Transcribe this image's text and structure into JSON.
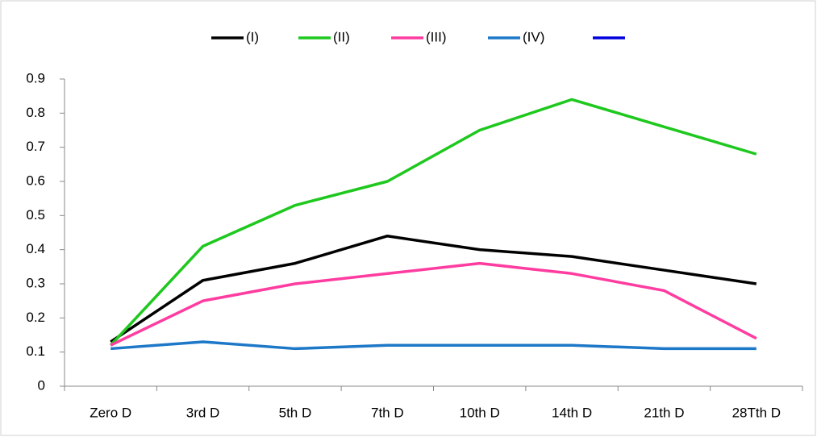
{
  "chart_data": {
    "type": "line",
    "categories": [
      "Zero D",
      "3rd D",
      "5th D",
      "7th D",
      "10th D",
      "14th D",
      "21th D",
      "28Tth D"
    ],
    "series": [
      {
        "name": "(I)",
        "color": "#000000",
        "values": [
          0.13,
          0.31,
          0.36,
          0.44,
          0.4,
          0.38,
          0.34,
          0.3
        ]
      },
      {
        "name": "(II)",
        "color": "#1ec81e",
        "values": [
          0.12,
          0.41,
          0.53,
          0.6,
          0.75,
          0.84,
          0.76,
          0.68
        ]
      },
      {
        "name": "(III)",
        "color": "#ff3ca0",
        "values": [
          0.12,
          0.25,
          0.3,
          0.33,
          0.36,
          0.33,
          0.28,
          0.14
        ]
      },
      {
        "name": "(IV)",
        "color": "#1e78c8",
        "values": [
          0.11,
          0.13,
          0.11,
          0.12,
          0.12,
          0.12,
          0.11,
          0.11
        ]
      },
      {
        "name": null,
        "color": "#0000dd",
        "values": [
          null,
          null,
          null,
          null,
          null,
          null,
          null,
          null
        ]
      }
    ],
    "ylim": [
      0,
      0.9
    ],
    "yticks": [
      0,
      0.1,
      0.2,
      0.3,
      0.4,
      0.5,
      0.6,
      0.7,
      0.8,
      0.9
    ],
    "grid": false,
    "legend": "top"
  }
}
